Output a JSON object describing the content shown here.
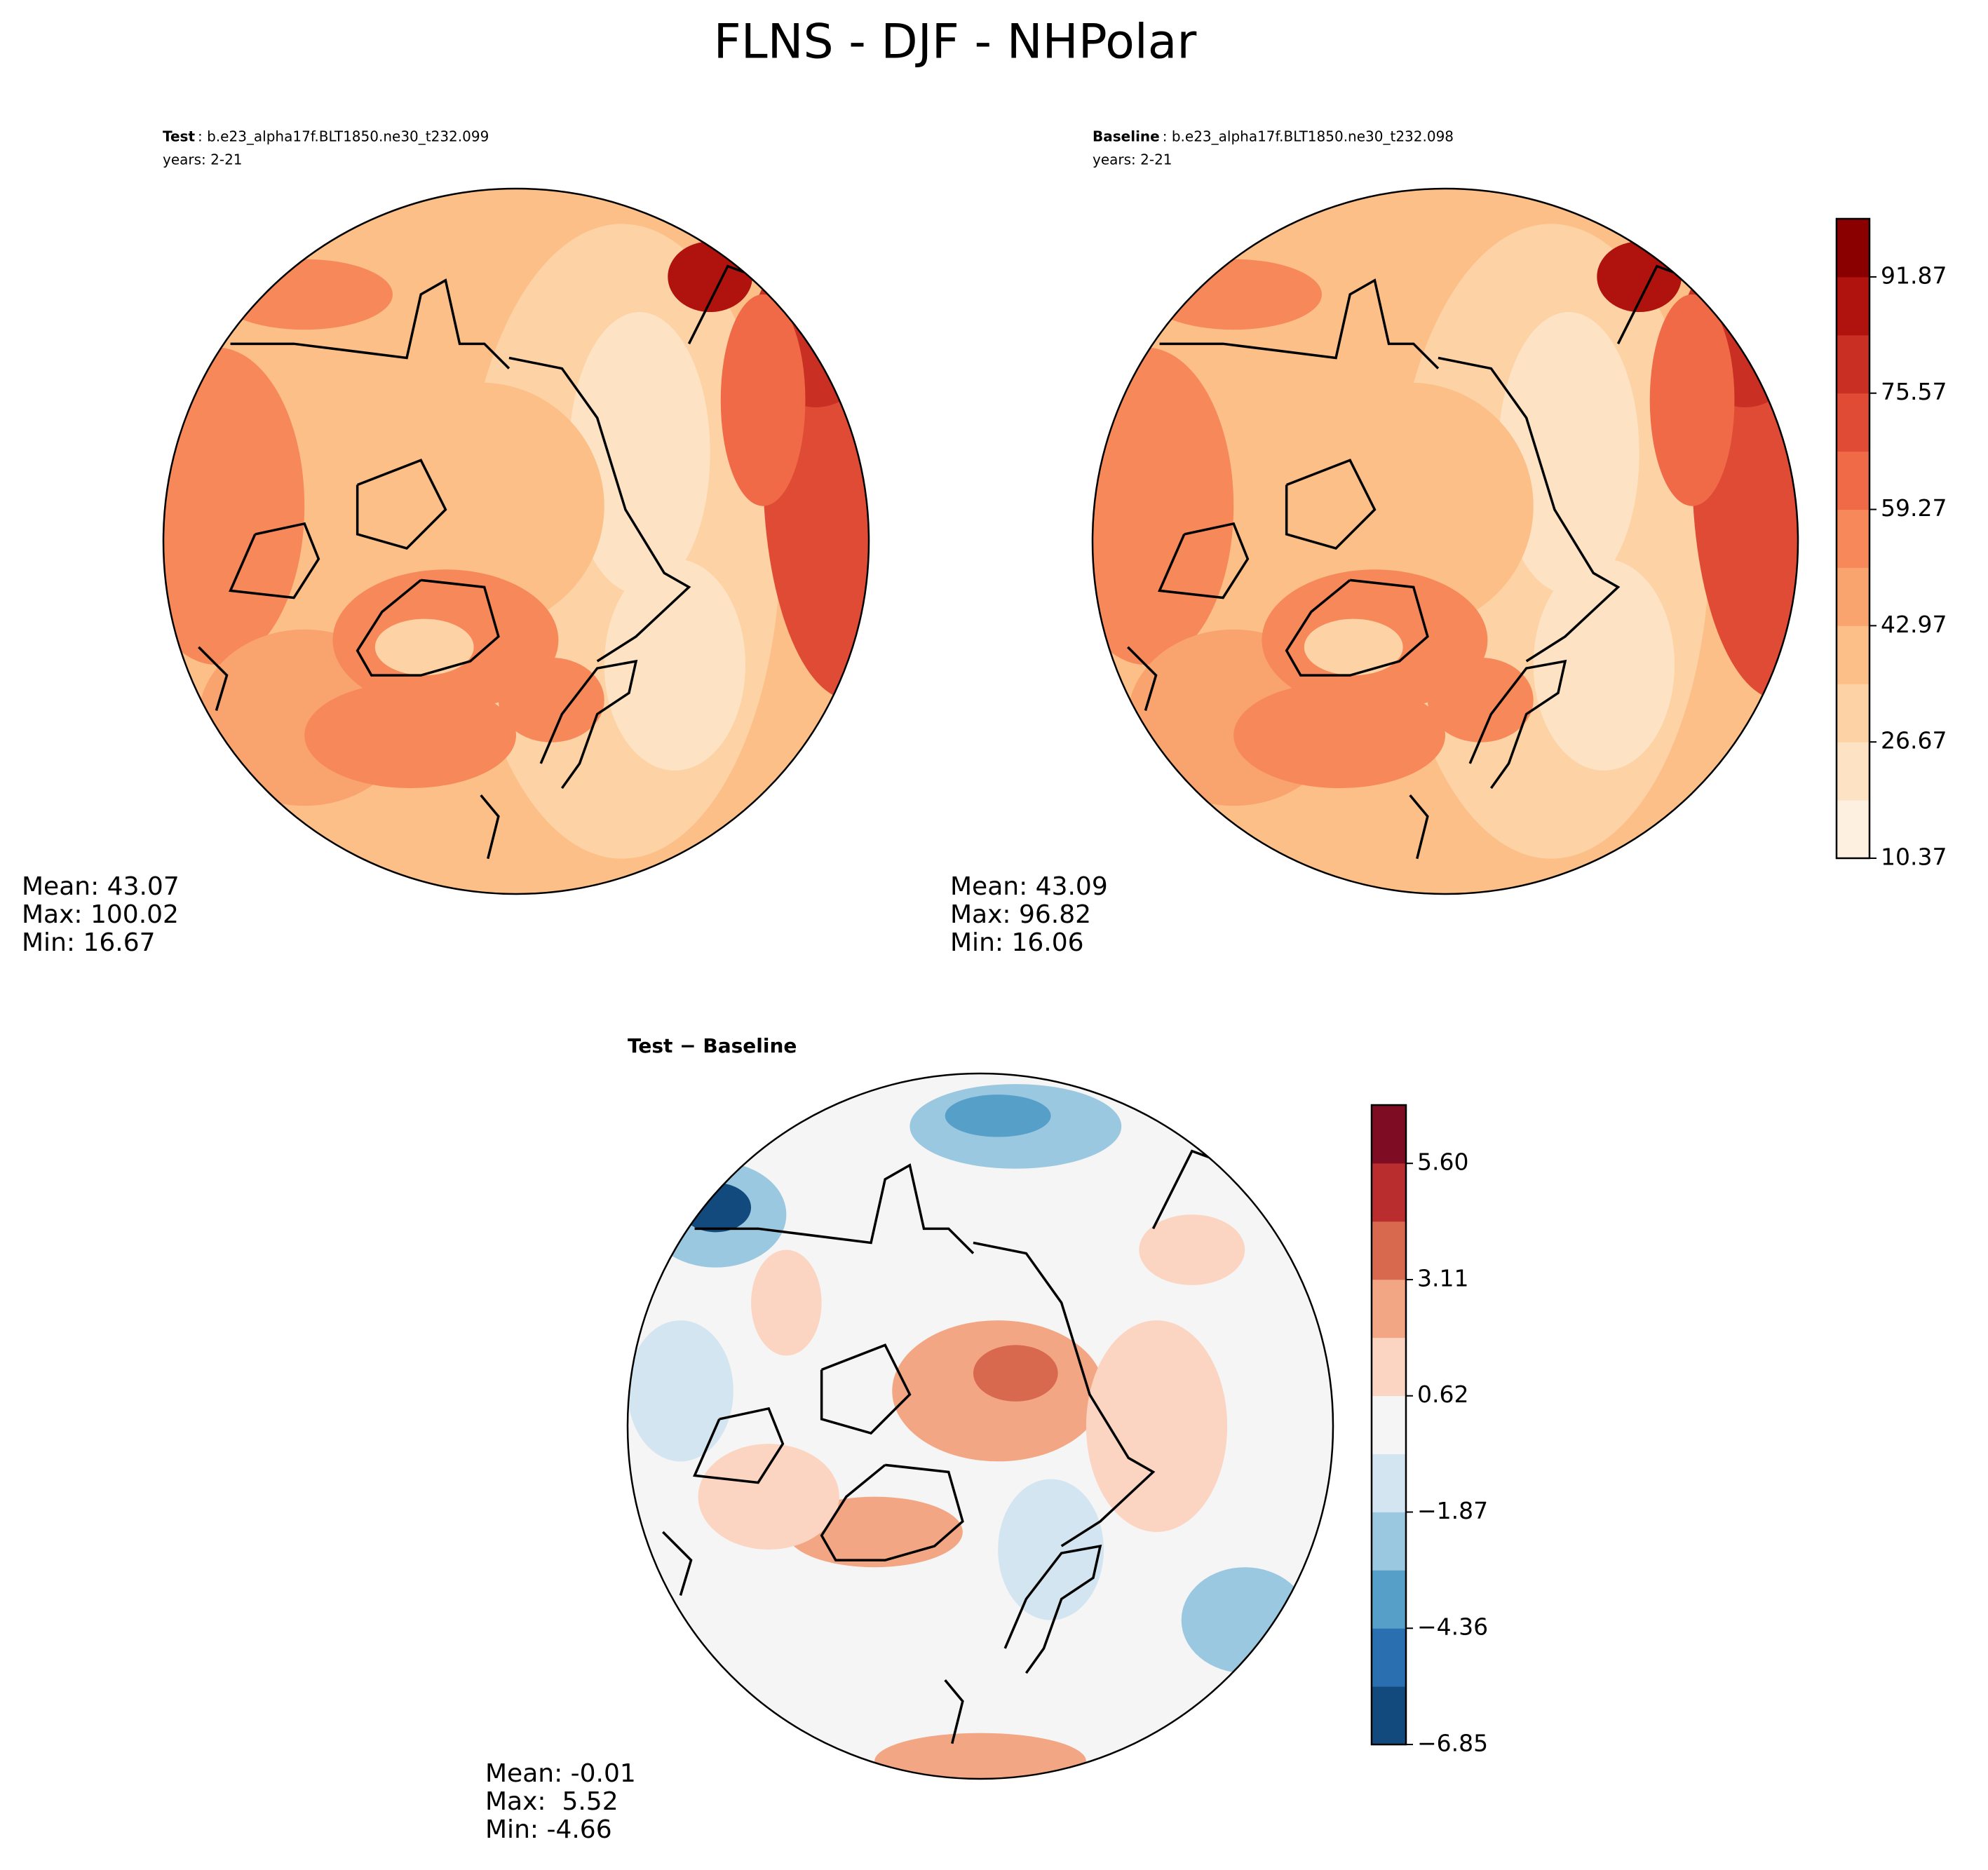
{
  "title": "FLNS - DJF - NHPolar",
  "panels": [
    {
      "label": "Test",
      "case": ": b.e23_alpha17f.BLT1850.ne30_t232.099",
      "years": "years: 2-21",
      "stats": [
        "Mean: 43.07",
        "Max: 100.02",
        "Min: 16.67"
      ]
    },
    {
      "label": "Baseline",
      "case": ": b.e23_alpha17f.BLT1850.ne30_t232.098",
      "years": "years: 2-21",
      "stats": [
        "Mean: 43.09",
        "Max: 96.82",
        "Min: 16.06"
      ]
    },
    {
      "label": "Test − Baseline",
      "stats": [
        "Mean: -0.01",
        "Max:  5.52",
        "Min: -4.66"
      ]
    }
  ],
  "colorbars": [
    {
      "lim": [
        10.37,
        100.02
      ],
      "ticks": [
        10.37,
        26.67,
        42.97,
        59.27,
        75.57,
        91.87
      ],
      "colors": [
        "#fef0e1",
        "#fde3c4",
        "#fdd2a4",
        "#fcbf88",
        "#f9a46e",
        "#f7885a",
        "#f06a48",
        "#e04b35",
        "#c92f22",
        "#b0120e",
        "#8a0000"
      ]
    },
    {
      "lim": [
        -6.85,
        6.85
      ],
      "ticks": [
        {
          "value": -6.85,
          "label": "−6.85"
        },
        {
          "value": -4.36,
          "label": "−4.36"
        },
        {
          "value": -1.87,
          "label": "−1.87"
        },
        0.62,
        3.11,
        {
          "value": 5.6,
          "label": "5.60"
        }
      ],
      "colors": [
        "#134a7e",
        "#2a70b0",
        "#569fc9",
        "#9ac8e0",
        "#d3e5f0",
        "#f5f5f5",
        "#fbd5c2",
        "#f3a683",
        "#d8694f",
        "#ba2d2f",
        "#7e0d24"
      ]
    }
  ]
}
